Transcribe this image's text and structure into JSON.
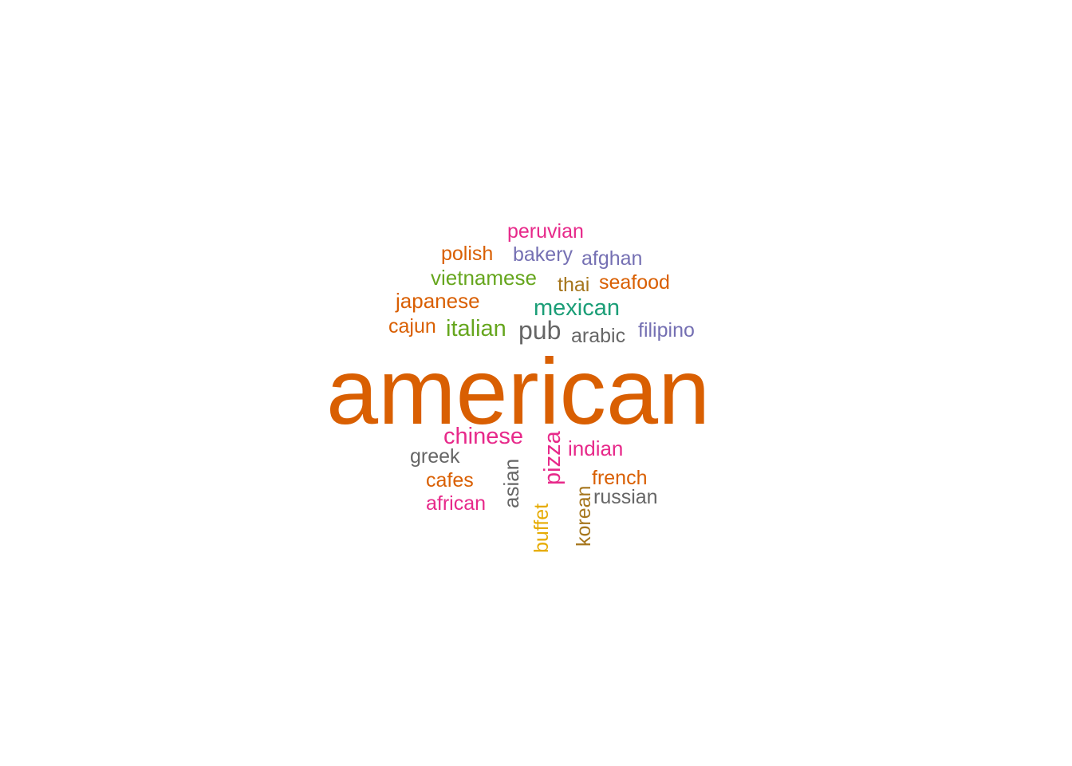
{
  "cloud": {
    "background": "#ffffff",
    "palette": {
      "orange": "#d95f02",
      "teal": "#1b9e77",
      "purple": "#7570b3",
      "pink": "#e7298a",
      "green": "#66a61e",
      "mustard": "#e6ab02",
      "brown": "#a6761d",
      "gray": "#666666"
    },
    "words": [
      {
        "text": "american",
        "color": "#d95f02"
      },
      {
        "text": "peruvian",
        "color": "#e7298a"
      },
      {
        "text": "polish",
        "color": "#d95f02"
      },
      {
        "text": "bakery",
        "color": "#7570b3"
      },
      {
        "text": "afghan",
        "color": "#7570b3"
      },
      {
        "text": "vietnamese",
        "color": "#66a61e"
      },
      {
        "text": "thai",
        "color": "#a6761d"
      },
      {
        "text": "seafood",
        "color": "#d95f02"
      },
      {
        "text": "japanese",
        "color": "#d95f02"
      },
      {
        "text": "mexican",
        "color": "#1b9e77"
      },
      {
        "text": "cajun",
        "color": "#d95f02"
      },
      {
        "text": "italian",
        "color": "#66a61e"
      },
      {
        "text": "pub",
        "color": "#666666"
      },
      {
        "text": "arabic",
        "color": "#666666"
      },
      {
        "text": "filipino",
        "color": "#7570b3"
      },
      {
        "text": "chinese",
        "color": "#e7298a"
      },
      {
        "text": "pizza",
        "color": "#e7298a"
      },
      {
        "text": "indian",
        "color": "#e7298a"
      },
      {
        "text": "greek",
        "color": "#666666"
      },
      {
        "text": "asian",
        "color": "#666666"
      },
      {
        "text": "cafes",
        "color": "#d95f02"
      },
      {
        "text": "french",
        "color": "#d95f02"
      },
      {
        "text": "russian",
        "color": "#666666"
      },
      {
        "text": "african",
        "color": "#e7298a"
      },
      {
        "text": "buffet",
        "color": "#e6ab02"
      },
      {
        "text": "korean",
        "color": "#a6761d"
      }
    ]
  }
}
